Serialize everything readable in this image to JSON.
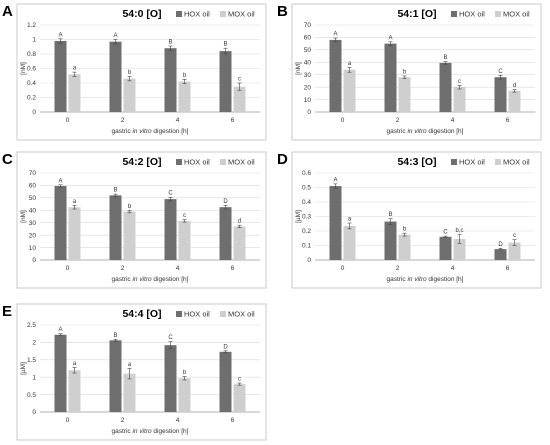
{
  "colors": {
    "hox": "#6e6e6e",
    "mox": "#cfcfcf"
  },
  "chart_data": [
    {
      "panel": "A",
      "type": "bar",
      "title": "54:0 [O]",
      "ylabel": "[nM]",
      "xlabel_parts": [
        "gastric ",
        "in vitro",
        " digestion [h]"
      ],
      "categories": [
        "0",
        "2",
        "4",
        "6"
      ],
      "ylim": [
        0,
        1.2
      ],
      "yticks": [
        "0",
        "0.2",
        "0.4",
        "0.6",
        "0.8",
        "1",
        "1.2"
      ],
      "legend_position": "top-right",
      "grid": true,
      "series": [
        {
          "name": "HOX oil",
          "values": [
            0.98,
            0.97,
            0.88,
            0.84
          ],
          "errors": [
            0.03,
            0.03,
            0.03,
            0.04
          ],
          "labels": [
            "A",
            "A",
            "B",
            "B"
          ]
        },
        {
          "name": "MOX oil",
          "values": [
            0.52,
            0.46,
            0.42,
            0.35
          ],
          "errors": [
            0.03,
            0.03,
            0.03,
            0.05
          ],
          "labels": [
            "a",
            "b",
            "b",
            "c"
          ]
        }
      ]
    },
    {
      "panel": "B",
      "type": "bar",
      "title": "54:1 [O]",
      "ylabel": "[nM]",
      "xlabel_parts": [
        "gastric ",
        "in vitro",
        " digestion [h]"
      ],
      "categories": [
        "0",
        "2",
        "4",
        "6"
      ],
      "ylim": [
        0,
        70
      ],
      "yticks": [
        "0",
        "10",
        "20",
        "30",
        "40",
        "50",
        "60",
        "70"
      ],
      "legend_position": "top-right",
      "grid": true,
      "series": [
        {
          "name": "HOX oil",
          "values": [
            58,
            55,
            39.5,
            28
          ],
          "errors": [
            1.5,
            1.5,
            1.0,
            1.5
          ],
          "labels": [
            "A",
            "A",
            "B",
            "C"
          ]
        },
        {
          "name": "MOX oil",
          "values": [
            34,
            28,
            20,
            17
          ],
          "errors": [
            2.0,
            1.0,
            1.5,
            1.0
          ],
          "labels": [
            "a",
            "b",
            "c",
            "d"
          ]
        }
      ]
    },
    {
      "panel": "C",
      "type": "bar",
      "title": "54:2 [O]",
      "ylabel": "[nM]",
      "xlabel_parts": [
        "gastric ",
        "in vitro",
        " digestion [h]"
      ],
      "categories": [
        "0",
        "2",
        "4",
        "6"
      ],
      "ylim": [
        0,
        70
      ],
      "yticks": [
        "0",
        "10",
        "20",
        "30",
        "40",
        "50",
        "60",
        "70"
      ],
      "legend_position": "top-right",
      "grid": true,
      "series": [
        {
          "name": "HOX oil",
          "values": [
            59.5,
            52,
            49,
            42.5
          ],
          "errors": [
            1.0,
            1.0,
            1.5,
            1.5
          ],
          "labels": [
            "A",
            "B",
            "C",
            "D"
          ]
        },
        {
          "name": "MOX oil",
          "values": [
            42.5,
            39,
            31.5,
            27
          ],
          "errors": [
            1.5,
            1.0,
            1.0,
            1.0
          ],
          "labels": [
            "a",
            "b",
            "c",
            "d"
          ]
        }
      ]
    },
    {
      "panel": "D",
      "type": "bar",
      "title": "54:3 [O]",
      "ylabel": "[µM]",
      "xlabel_parts": [
        "gastric ",
        "in vitro",
        " digestion [h]"
      ],
      "categories": [
        "0",
        "2",
        "4",
        "6"
      ],
      "ylim": [
        0,
        0.6
      ],
      "yticks": [
        "0",
        "0.1",
        "0.2",
        "0.3",
        "0.4",
        "0.5",
        "0.6"
      ],
      "legend_position": "top-right",
      "grid": true,
      "series": [
        {
          "name": "HOX oil",
          "values": [
            0.51,
            0.265,
            0.16,
            0.075
          ],
          "errors": [
            0.015,
            0.02,
            0.005,
            0.005
          ],
          "labels": [
            "A",
            "B",
            "C",
            "D"
          ]
        },
        {
          "name": "MOX oil",
          "values": [
            0.235,
            0.175,
            0.145,
            0.12
          ],
          "errors": [
            0.02,
            0.01,
            0.03,
            0.02
          ],
          "labels": [
            "a",
            "b",
            "b,c",
            "c"
          ]
        }
      ]
    },
    {
      "panel": "E",
      "type": "bar",
      "title": "54:4 [O]",
      "ylabel": "[µM]",
      "xlabel_parts": [
        "gastric ",
        "in vitro",
        " digestion [h]"
      ],
      "categories": [
        "0",
        "2",
        "4",
        "6"
      ],
      "ylim": [
        0,
        2.5
      ],
      "yticks": [
        "0",
        "0.5",
        "1",
        "1.5",
        "2",
        "2.5"
      ],
      "legend_position": "top-right",
      "grid": true,
      "series": [
        {
          "name": "HOX oil",
          "values": [
            2.22,
            2.06,
            1.92,
            1.73
          ],
          "errors": [
            0.03,
            0.03,
            0.1,
            0.03
          ],
          "labels": [
            "A",
            "B",
            "C",
            "D"
          ]
        },
        {
          "name": "MOX oil",
          "values": [
            1.2,
            1.1,
            0.97,
            0.8
          ],
          "errors": [
            0.08,
            0.15,
            0.05,
            0.03
          ],
          "labels": [
            "a",
            "a",
            "b",
            "c"
          ]
        }
      ]
    }
  ]
}
